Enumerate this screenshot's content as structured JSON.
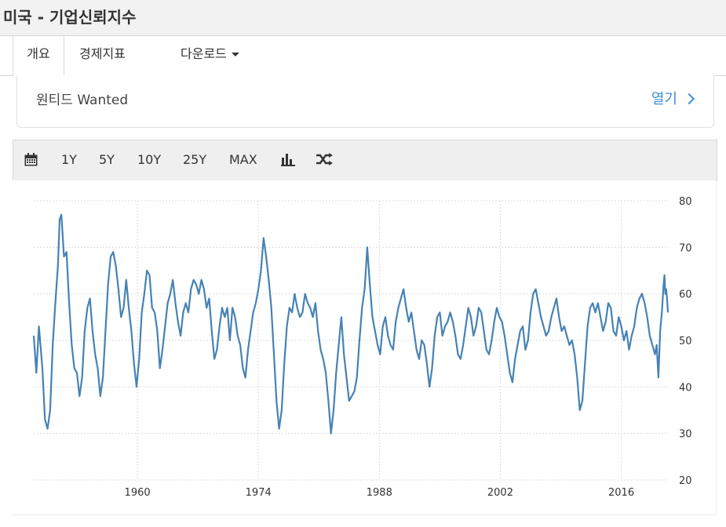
{
  "header": {
    "title": "미국 - 기업신뢰지수"
  },
  "tabs": [
    {
      "label": "개요"
    },
    {
      "label": "경제지표"
    },
    {
      "label": "다운로드"
    }
  ],
  "ad": {
    "text": "원티드 Wanted",
    "link": "열기"
  },
  "toolbar": {
    "icons": [
      "calendar-icon",
      "bar-chart-icon",
      "random-icon"
    ],
    "ranges": [
      "1Y",
      "5Y",
      "10Y",
      "25Y",
      "MAX"
    ]
  },
  "colors": {
    "line": "#4682b4",
    "link": "#3d8fd8"
  },
  "chart_data": {
    "type": "line",
    "title": "",
    "xlabel": "",
    "ylabel": "",
    "x_ticks": [
      "1960",
      "1974",
      "1988",
      "2002",
      "2016"
    ],
    "y_ticks": [
      "20",
      "30",
      "40",
      "50",
      "60",
      "70",
      "80"
    ],
    "ylim": [
      20,
      80
    ],
    "xlim": [
      1948,
      2021.4
    ],
    "grid": true,
    "y_axis_side": "right",
    "series": [
      {
        "values": [
          [
            1948.0,
            51
          ],
          [
            1948.3,
            43
          ],
          [
            1948.6,
            53
          ],
          [
            1949.0,
            44
          ],
          [
            1949.3,
            33
          ],
          [
            1949.6,
            31
          ],
          [
            1949.9,
            35
          ],
          [
            1950.2,
            49
          ],
          [
            1950.5,
            58
          ],
          [
            1950.8,
            66
          ],
          [
            1951.0,
            76
          ],
          [
            1951.2,
            77
          ],
          [
            1951.5,
            68
          ],
          [
            1951.8,
            69
          ],
          [
            1952.1,
            58
          ],
          [
            1952.4,
            49
          ],
          [
            1952.7,
            44
          ],
          [
            1953.0,
            43
          ],
          [
            1953.3,
            38
          ],
          [
            1953.6,
            42
          ],
          [
            1953.9,
            52
          ],
          [
            1954.2,
            57
          ],
          [
            1954.5,
            59
          ],
          [
            1954.8,
            52
          ],
          [
            1955.1,
            47
          ],
          [
            1955.4,
            44
          ],
          [
            1955.7,
            38
          ],
          [
            1956.0,
            42
          ],
          [
            1956.3,
            52
          ],
          [
            1956.6,
            62
          ],
          [
            1956.9,
            68
          ],
          [
            1957.2,
            69
          ],
          [
            1957.5,
            66
          ],
          [
            1957.8,
            61
          ],
          [
            1958.1,
            55
          ],
          [
            1958.4,
            57
          ],
          [
            1958.7,
            63
          ],
          [
            1959.0,
            57
          ],
          [
            1959.3,
            52
          ],
          [
            1959.6,
            45
          ],
          [
            1959.9,
            40
          ],
          [
            1960.2,
            46
          ],
          [
            1960.5,
            56
          ],
          [
            1960.8,
            60
          ],
          [
            1961.1,
            65
          ],
          [
            1961.4,
            64
          ],
          [
            1961.7,
            57
          ],
          [
            1962.0,
            56
          ],
          [
            1962.3,
            52
          ],
          [
            1962.6,
            44
          ],
          [
            1962.9,
            48
          ],
          [
            1963.2,
            53
          ],
          [
            1963.5,
            58
          ],
          [
            1963.8,
            60
          ],
          [
            1964.1,
            63
          ],
          [
            1964.4,
            58
          ],
          [
            1964.7,
            54
          ],
          [
            1965.0,
            51
          ],
          [
            1965.3,
            56
          ],
          [
            1965.6,
            58
          ],
          [
            1965.9,
            56
          ],
          [
            1966.2,
            61
          ],
          [
            1966.5,
            63
          ],
          [
            1966.8,
            62
          ],
          [
            1967.1,
            60
          ],
          [
            1967.4,
            63
          ],
          [
            1967.7,
            61
          ],
          [
            1968.0,
            57
          ],
          [
            1968.3,
            59
          ],
          [
            1968.6,
            52
          ],
          [
            1968.9,
            46
          ],
          [
            1969.2,
            48
          ],
          [
            1969.5,
            53
          ],
          [
            1969.8,
            57
          ],
          [
            1970.1,
            55
          ],
          [
            1970.4,
            57
          ],
          [
            1970.7,
            50
          ],
          [
            1971.0,
            57
          ],
          [
            1971.3,
            55
          ],
          [
            1971.6,
            51
          ],
          [
            1971.9,
            49
          ],
          [
            1972.2,
            44
          ],
          [
            1972.5,
            42
          ],
          [
            1972.8,
            48
          ],
          [
            1973.1,
            52
          ],
          [
            1973.4,
            56
          ],
          [
            1973.7,
            58
          ],
          [
            1974.0,
            61
          ],
          [
            1974.3,
            65
          ],
          [
            1974.6,
            72
          ],
          [
            1974.9,
            68
          ],
          [
            1975.2,
            63
          ],
          [
            1975.5,
            57
          ],
          [
            1975.8,
            47
          ],
          [
            1976.1,
            37
          ],
          [
            1976.4,
            31
          ],
          [
            1976.7,
            35
          ],
          [
            1977.0,
            45
          ],
          [
            1977.3,
            53
          ],
          [
            1977.6,
            57
          ],
          [
            1977.9,
            56
          ],
          [
            1978.2,
            60
          ],
          [
            1978.5,
            57
          ],
          [
            1978.8,
            55
          ],
          [
            1979.1,
            56
          ],
          [
            1979.4,
            60
          ],
          [
            1979.7,
            58
          ],
          [
            1980.0,
            57
          ],
          [
            1980.3,
            55
          ],
          [
            1980.6,
            58
          ],
          [
            1980.9,
            52
          ],
          [
            1981.2,
            48
          ],
          [
            1981.5,
            46
          ],
          [
            1981.8,
            43
          ],
          [
            1982.1,
            37
          ],
          [
            1982.4,
            30
          ],
          [
            1982.7,
            35
          ],
          [
            1983.0,
            43
          ],
          [
            1983.3,
            49
          ],
          [
            1983.6,
            55
          ],
          [
            1983.9,
            47
          ],
          [
            1984.2,
            42
          ],
          [
            1984.5,
            37
          ],
          [
            1984.8,
            38
          ],
          [
            1985.1,
            39
          ],
          [
            1985.4,
            42
          ],
          [
            1985.7,
            50
          ],
          [
            1986.0,
            57
          ],
          [
            1986.3,
            61
          ],
          [
            1986.6,
            70
          ],
          [
            1986.9,
            62
          ],
          [
            1987.2,
            55
          ],
          [
            1987.5,
            52
          ],
          [
            1987.8,
            49
          ],
          [
            1988.1,
            47
          ],
          [
            1988.4,
            53
          ],
          [
            1988.7,
            55
          ],
          [
            1989.0,
            51
          ],
          [
            1989.3,
            49
          ],
          [
            1989.6,
            48
          ],
          [
            1989.9,
            54
          ],
          [
            1990.2,
            57
          ],
          [
            1990.5,
            59
          ],
          [
            1990.8,
            61
          ],
          [
            1991.1,
            57
          ],
          [
            1991.4,
            54
          ],
          [
            1991.7,
            56
          ],
          [
            1992.0,
            52
          ],
          [
            1992.3,
            48
          ],
          [
            1992.6,
            46
          ],
          [
            1992.9,
            50
          ],
          [
            1993.2,
            49
          ],
          [
            1993.5,
            45
          ],
          [
            1993.8,
            40
          ],
          [
            1994.1,
            44
          ],
          [
            1994.4,
            51
          ],
          [
            1994.7,
            55
          ],
          [
            1995.0,
            56
          ],
          [
            1995.3,
            51
          ],
          [
            1995.6,
            53
          ],
          [
            1995.9,
            54
          ],
          [
            1996.2,
            56
          ],
          [
            1996.5,
            54
          ],
          [
            1996.8,
            51
          ],
          [
            1997.1,
            47
          ],
          [
            1997.4,
            46
          ],
          [
            1997.7,
            49
          ],
          [
            1998.0,
            53
          ],
          [
            1998.3,
            57
          ],
          [
            1998.6,
            55
          ],
          [
            1998.9,
            51
          ],
          [
            1999.2,
            53
          ],
          [
            1999.5,
            57
          ],
          [
            1999.8,
            56
          ],
          [
            2000.1,
            52
          ],
          [
            2000.4,
            48
          ],
          [
            2000.7,
            47
          ],
          [
            2001.0,
            50
          ],
          [
            2001.3,
            54
          ],
          [
            2001.6,
            57
          ],
          [
            2001.9,
            55
          ],
          [
            2002.2,
            54
          ],
          [
            2002.5,
            51
          ],
          [
            2002.8,
            47
          ],
          [
            2003.1,
            43
          ],
          [
            2003.4,
            41
          ],
          [
            2003.7,
            46
          ],
          [
            2004.0,
            49
          ],
          [
            2004.3,
            52
          ],
          [
            2004.6,
            53
          ],
          [
            2004.9,
            48
          ],
          [
            2005.2,
            50
          ],
          [
            2005.5,
            56
          ],
          [
            2005.8,
            60
          ],
          [
            2006.1,
            61
          ],
          [
            2006.4,
            58
          ],
          [
            2006.7,
            55
          ],
          [
            2007.0,
            53
          ],
          [
            2007.3,
            51
          ],
          [
            2007.6,
            52
          ],
          [
            2007.9,
            55
          ],
          [
            2008.2,
            57
          ],
          [
            2008.5,
            59
          ],
          [
            2008.8,
            55
          ],
          [
            2009.1,
            52
          ],
          [
            2009.4,
            53
          ],
          [
            2009.7,
            51
          ],
          [
            2010.0,
            49
          ],
          [
            2010.3,
            50
          ],
          [
            2010.6,
            47
          ],
          [
            2010.9,
            42
          ],
          [
            2011.2,
            35
          ],
          [
            2011.5,
            37
          ],
          [
            2011.8,
            45
          ],
          [
            2012.1,
            53
          ],
          [
            2012.4,
            57
          ],
          [
            2012.7,
            58
          ],
          [
            2013.0,
            56
          ],
          [
            2013.3,
            58
          ],
          [
            2013.6,
            55
          ],
          [
            2013.9,
            52
          ],
          [
            2014.2,
            54
          ],
          [
            2014.5,
            58
          ],
          [
            2014.8,
            57
          ],
          [
            2015.1,
            52
          ],
          [
            2015.4,
            51
          ],
          [
            2015.7,
            55
          ],
          [
            2016.0,
            53
          ],
          [
            2016.3,
            50
          ],
          [
            2016.6,
            52
          ],
          [
            2016.9,
            48
          ],
          [
            2017.2,
            51
          ],
          [
            2017.5,
            53
          ],
          [
            2017.8,
            57
          ],
          [
            2018.1,
            59
          ],
          [
            2018.4,
            60
          ],
          [
            2018.7,
            58
          ],
          [
            2019.0,
            55
          ],
          [
            2019.3,
            51
          ],
          [
            2019.6,
            49
          ],
          [
            2019.9,
            47
          ],
          [
            2020.1,
            49
          ],
          [
            2020.3,
            42
          ],
          [
            2020.5,
            52
          ],
          [
            2020.7,
            56
          ],
          [
            2020.9,
            62
          ],
          [
            2021.0,
            64
          ],
          [
            2021.1,
            60
          ],
          [
            2021.2,
            61
          ],
          [
            2021.3,
            59
          ],
          [
            2021.4,
            56
          ]
        ]
      }
    ]
  }
}
